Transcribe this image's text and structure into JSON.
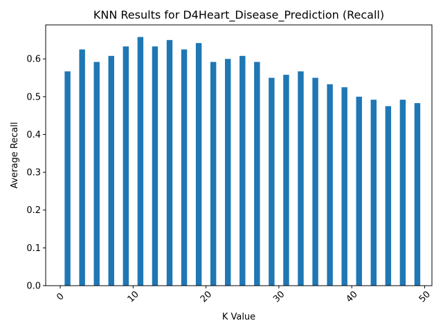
{
  "chart_data": {
    "type": "bar",
    "title": "KNN Results for D4Heart_Disease_Prediction (Recall)",
    "xlabel": "K Value",
    "ylabel": "Average Recall",
    "color": "#1f77b4",
    "xlim": [
      -2,
      51
    ],
    "ylim": [
      0,
      0.69
    ],
    "x_ticks": [
      0,
      10,
      20,
      30,
      40,
      50
    ],
    "x_tick_labels": [
      "0",
      "10",
      "20",
      "30",
      "40",
      "50"
    ],
    "y_ticks": [
      0.0,
      0.1,
      0.2,
      0.3,
      0.4,
      0.5,
      0.6
    ],
    "y_tick_labels": [
      "0.0",
      "0.1",
      "0.2",
      "0.3",
      "0.4",
      "0.5",
      "0.6"
    ],
    "grid": false,
    "legend": false,
    "bar_width": 0.8,
    "x": [
      1,
      3,
      5,
      7,
      9,
      11,
      13,
      15,
      17,
      19,
      21,
      23,
      25,
      27,
      29,
      31,
      33,
      35,
      37,
      39,
      41,
      43,
      45,
      47,
      49
    ],
    "values": [
      0.567,
      0.625,
      0.592,
      0.608,
      0.633,
      0.658,
      0.633,
      0.65,
      0.625,
      0.642,
      0.592,
      0.6,
      0.608,
      0.592,
      0.55,
      0.558,
      0.567,
      0.55,
      0.533,
      0.525,
      0.5,
      0.492,
      0.475,
      0.492,
      0.483
    ]
  }
}
